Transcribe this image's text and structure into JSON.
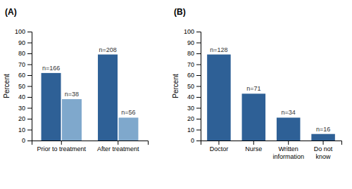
{
  "chart_data": [
    {
      "type": "bar",
      "title": "(A)",
      "ylabel": "Percent",
      "categories": [
        "Prior to treatment",
        "After treatment"
      ],
      "series": [
        {
          "color": "#2E6096",
          "values": [
            62,
            79
          ],
          "value_labels": [
            "n=166",
            "n=208"
          ]
        },
        {
          "color": "#7FA8CC",
          "values": [
            38,
            21
          ],
          "value_labels": [
            "n=38",
            "n=56"
          ]
        }
      ],
      "ylim": [
        0,
        100
      ],
      "yticks": [
        0,
        10,
        20,
        30,
        40,
        50,
        60,
        70,
        80,
        90,
        100
      ],
      "grid": false,
      "data_labels": true
    },
    {
      "type": "bar",
      "title": "(B)",
      "ylabel": "Percent",
      "categories": [
        "Doctor",
        "Nurse",
        "Written\ninformation",
        "Do not\nknow"
      ],
      "values": [
        79,
        43,
        21,
        6
      ],
      "value_labels": [
        "n=128",
        "n=71",
        "n=34",
        "n=16"
      ],
      "color": "#2E6096",
      "ylim": [
        0,
        100
      ],
      "yticks": [
        0,
        10,
        20,
        30,
        40,
        50,
        60,
        70,
        80,
        90,
        100
      ],
      "grid": false,
      "data_labels": true
    }
  ]
}
